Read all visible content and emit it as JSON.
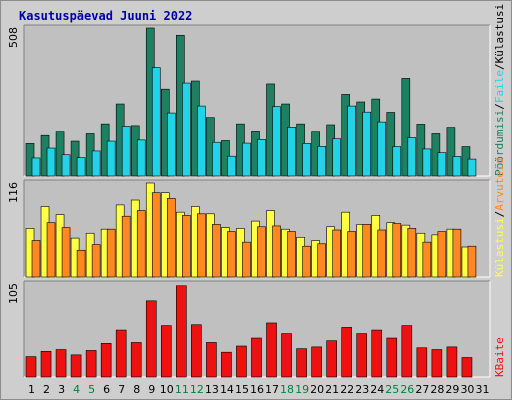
{
  "chart_data": {
    "title": "Kasutuspäevad Juuni 2022",
    "type": "bar",
    "categories": [
      "1",
      "2",
      "3",
      "4",
      "5",
      "6",
      "7",
      "8",
      "9",
      "10",
      "11",
      "12",
      "13",
      "14",
      "15",
      "16",
      "17",
      "18",
      "19",
      "20",
      "21",
      "22",
      "23",
      "24",
      "25",
      "26",
      "27",
      "28",
      "29",
      "30",
      "31"
    ],
    "weekend_days": [
      "4",
      "5",
      "11",
      "12",
      "18",
      "19",
      "25",
      "26"
    ],
    "panels": [
      {
        "id": "hits-files",
        "ymax_label": "508",
        "right_labels": [
          "Pöördumisi",
          "/",
          "Faile",
          "/",
          "Külastusi"
        ],
        "series": [
          {
            "name": "Pöördumisi",
            "color": "#1e8060",
            "values": [
              112,
              140,
              152,
              120,
              146,
              178,
              247,
              172,
              508,
              298,
              483,
              326,
              200,
              122,
              178,
              153,
              316,
              247,
              178,
              152,
              175,
              280,
              254,
              264,
              218,
              335,
              177,
              146,
              166,
              101,
              0
            ]
          },
          {
            "name": "Faile",
            "color": "#22d3e8",
            "values": [
              62,
              96,
              73,
              63,
              86,
              120,
              170,
              124,
              372,
              216,
              319,
              240,
              116,
              68,
              113,
              126,
              238,
              167,
              112,
              102,
              128,
              240,
              219,
              185,
              101,
              132,
              93,
              80,
              67,
              58,
              0
            ]
          }
        ]
      },
      {
        "id": "visits",
        "ymax_label": "116",
        "right_labels": [
          "Külastusi",
          "/",
          "Arvuteid"
        ],
        "series": [
          {
            "name": "Külastusi",
            "color": "#ffff44",
            "values": [
              60,
              87,
              77,
              48,
              54,
              59,
              89,
              95,
              116,
              104,
              80,
              87,
              78,
              61,
              60,
              69,
              82,
              59,
              49,
              45,
              62,
              80,
              65,
              76,
              67,
              64,
              54,
              52,
              59,
              37,
              0
            ]
          },
          {
            "name": "Arvuteid",
            "color": "#ff8822",
            "values": [
              45,
              67,
              61,
              33,
              40,
              59,
              75,
              82,
              104,
              97,
              76,
              78,
              65,
              56,
              43,
              62,
              63,
              56,
              38,
              41,
              58,
              56,
              65,
              58,
              66,
              60,
              43,
              56,
              59,
              38,
              0
            ]
          }
        ]
      },
      {
        "id": "kbytes",
        "ymax_label": "105",
        "right_labels": [
          "KBaite"
        ],
        "series": [
          {
            "name": "KBaite",
            "color": "#ee1111",
            "values": [
              23,
              29,
              31,
              25,
              30,
              38,
              53,
              39,
              86,
              58,
              103,
              59,
              39,
              28,
              35,
              44,
              61,
              49,
              32,
              34,
              41,
              56,
              49,
              53,
              44,
              58,
              33,
              31,
              34,
              22,
              0
            ]
          }
        ]
      }
    ]
  },
  "colors": {
    "title": "#0000aa",
    "plot_background": "#c0c0c0",
    "frame_background": "#cecece",
    "weekday_label": "#000000",
    "weekend_label": "#008040",
    "slash": "#000000"
  }
}
